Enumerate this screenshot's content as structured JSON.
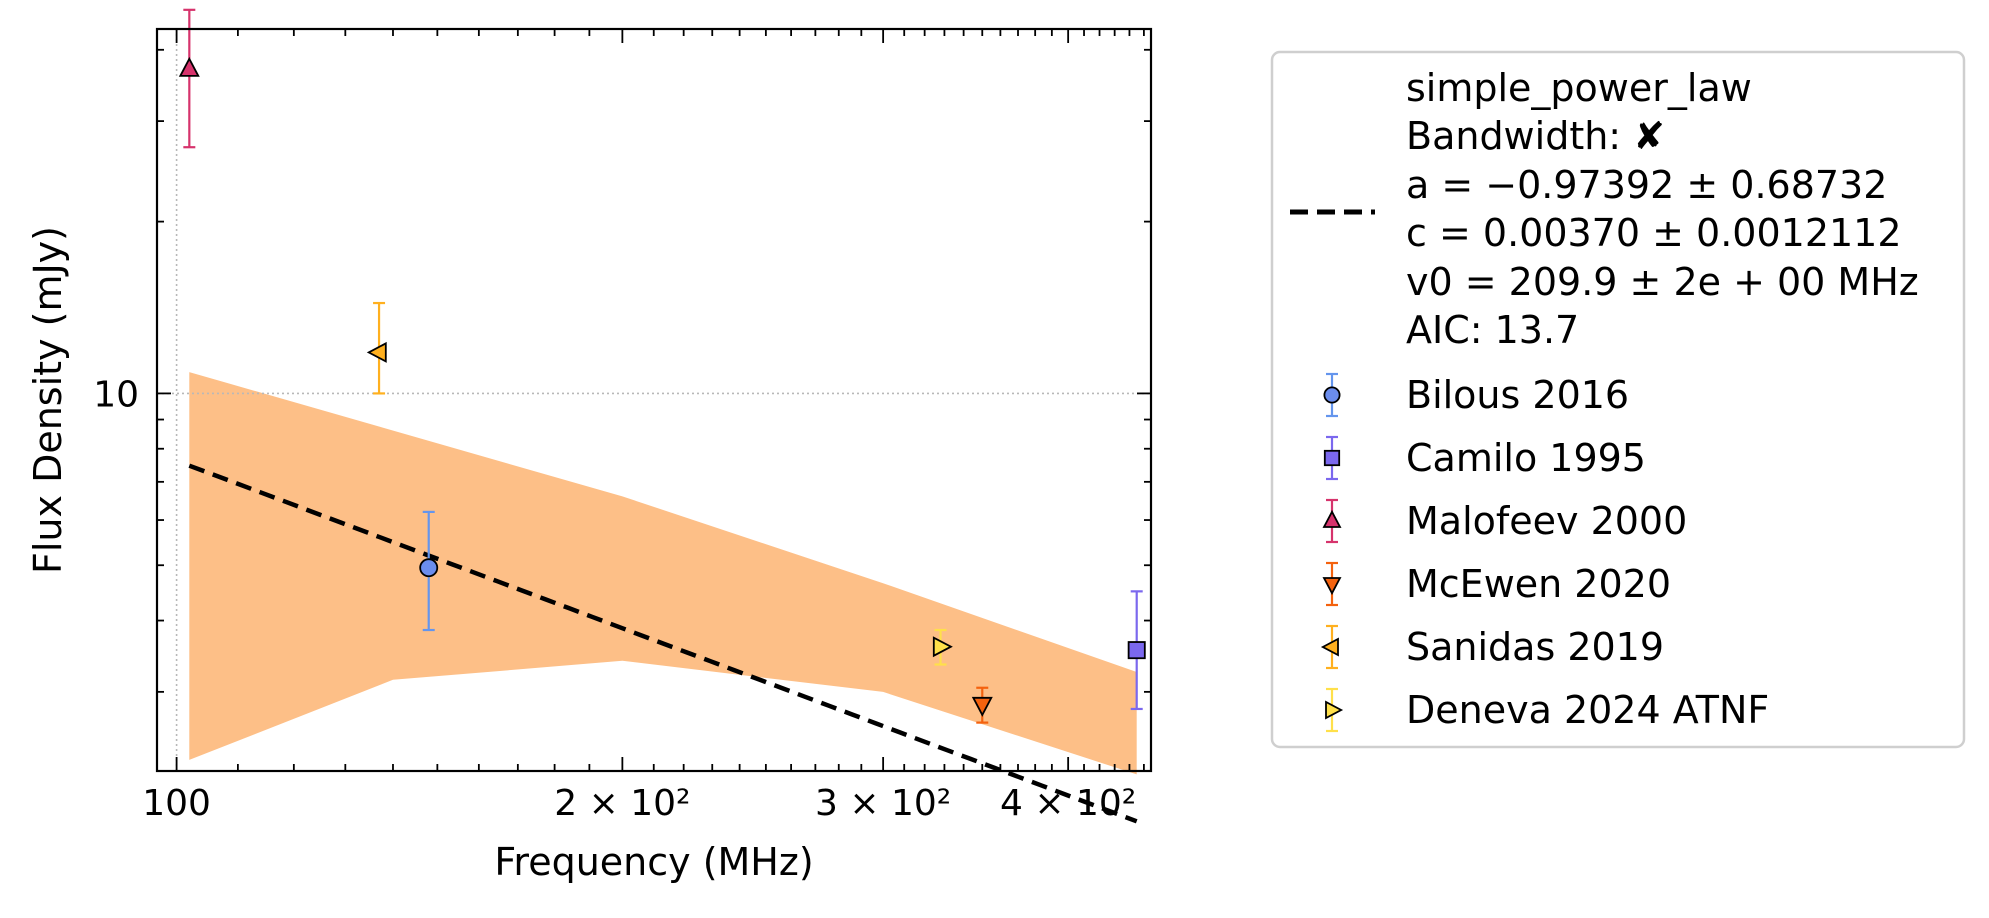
{
  "chart_data": {
    "type": "scatter",
    "xlabel": "Frequency (MHz)",
    "ylabel": "Flux Density (mJy)",
    "xscale": "log",
    "yscale": "log",
    "xlim": [
      97,
      455
    ],
    "ylim": [
      2.18,
      43.5
    ],
    "x_ticks": [
      {
        "value": 100,
        "label": "100"
      },
      {
        "value": 200,
        "label": "2 × 10²"
      },
      {
        "value": 300,
        "label": "3 × 10²"
      },
      {
        "value": 400,
        "label": "4 × 10²"
      }
    ],
    "y_ticks": [
      {
        "value": 10,
        "label": "10"
      }
    ],
    "grid": "reference lines at x=100 and y=10 only",
    "legend_position": "right, outside plot",
    "fit": {
      "name": "simple_power_law",
      "bandwidth_line": "Bandwidth: ✘",
      "param_lines": [
        "a = −0.97392 ± 0.68732",
        "c = 0.00370 ± 0.0012112",
        "v0 = 209.9 ± 2e + 00 MHz"
      ],
      "aic_line": "AIC: 13.7",
      "a": -0.97392,
      "c_mJy": 3.7,
      "v0": 209.9,
      "x_range": [
        102,
        445
      ],
      "line_color": "#000000",
      "band_color": "#fdbf87",
      "band_upper": [
        [
          102,
          10.9
        ],
        [
          200,
          6.6
        ],
        [
          300,
          4.65
        ],
        [
          445,
          3.25
        ]
      ],
      "band_lower": [
        [
          102,
          2.28
        ],
        [
          140,
          3.15
        ],
        [
          200,
          3.4
        ],
        [
          300,
          3.0
        ],
        [
          445,
          2.15
        ]
      ]
    },
    "series": [
      {
        "name": "Bilous 2016",
        "marker": "circle",
        "color": "#6b8ded",
        "err_color": "#6495ed",
        "points": [
          {
            "x": 148,
            "y": 4.95,
            "err_lo": 1.1,
            "err_hi": 1.25
          }
        ]
      },
      {
        "name": "Camilo 1995",
        "marker": "square",
        "color": "#7b68ee",
        "err_color": "#7b68ee",
        "points": [
          {
            "x": 445,
            "y": 3.55,
            "err_lo": 0.75,
            "err_hi": 0.95
          }
        ]
      },
      {
        "name": "Malofeev 2000",
        "marker": "triangle-up",
        "color": "#d6336c",
        "err_color": "#d6336c",
        "points": [
          {
            "x": 102,
            "y": 37.0,
            "err_lo": 10.0,
            "err_hi": 10.0
          }
        ]
      },
      {
        "name": "McEwen 2020",
        "marker": "triangle-down",
        "color": "#f4620e",
        "err_color": "#f4620e",
        "points": [
          {
            "x": 350,
            "y": 2.85,
            "err_lo": 0.2,
            "err_hi": 0.2
          }
        ]
      },
      {
        "name": "Sanidas 2019",
        "marker": "triangle-left",
        "color": "#ffb01f",
        "err_color": "#ffb01f",
        "points": [
          {
            "x": 137,
            "y": 11.8,
            "err_lo": 1.8,
            "err_hi": 2.6
          }
        ]
      },
      {
        "name": "Deneva 2024 ATNF",
        "marker": "triangle-right",
        "color": "#ffe04a",
        "err_color": "#ffe04a",
        "points": [
          {
            "x": 328,
            "y": 3.6,
            "err_lo": 0.25,
            "err_hi": 0.25
          }
        ]
      }
    ]
  }
}
